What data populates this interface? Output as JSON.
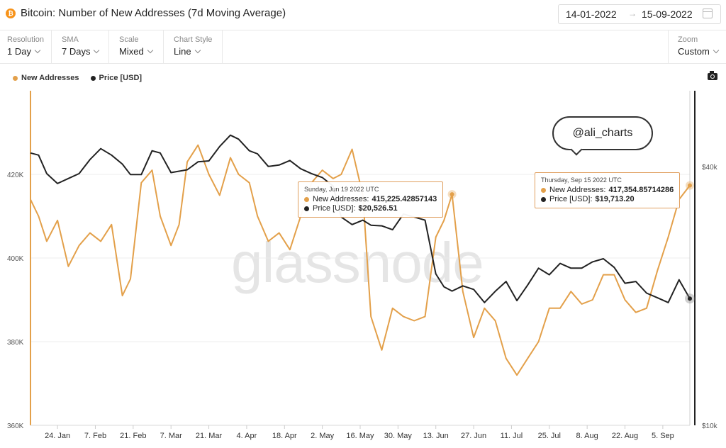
{
  "header": {
    "coin_icon": "bitcoin-icon",
    "coin_glyph": "₿",
    "title": "Bitcoin: Number of New Addresses (7d Moving Average)",
    "date_start": "14-01-2022",
    "date_arrow": "→",
    "date_end": "15-09-2022"
  },
  "toolbar": {
    "resolution_label": "Resolution",
    "resolution_value": "1 Day",
    "sma_label": "SMA",
    "sma_value": "7 Days",
    "scale_label": "Scale",
    "scale_value": "Mixed",
    "chartstyle_label": "Chart Style",
    "chartstyle_value": "Line",
    "zoom_label": "Zoom",
    "zoom_value": "Custom"
  },
  "legend": {
    "addresses": "New Addresses",
    "price": "Price [USD]"
  },
  "watermark": "glassnode",
  "annotation": "@ali_charts",
  "tooltips": {
    "left": {
      "date": "Sunday, Jun 19 2022 UTC",
      "addr_label": "New Addresses:",
      "addr_value": "415,225.42857143",
      "price_label": "Price [USD]:",
      "price_value": "$20,526.51"
    },
    "right": {
      "date": "Thursday, Sep 15 2022 UTC",
      "addr_label": "New Addresses:",
      "addr_value": "417,354.85714286",
      "price_label": "Price [USD]:",
      "price_value": "$19,713.20"
    }
  },
  "colors": {
    "addresses": "#e3a04a",
    "price": "#222222",
    "grid": "#ececec"
  },
  "chart_data": {
    "type": "line",
    "title": "Bitcoin: Number of New Addresses (7d Moving Average)",
    "y_left_ticks": [
      "360K",
      "380K",
      "400K",
      "420K"
    ],
    "y_left_values": [
      360000,
      380000,
      400000,
      420000
    ],
    "y_left_range": [
      360000,
      440000
    ],
    "y_right_ticks": [
      "$10k",
      "$40k"
    ],
    "y_right_scale": "log",
    "y_right_range": [
      10000,
      60000
    ],
    "x_ticks": [
      "24. Jan",
      "7. Feb",
      "21. Feb",
      "7. Mar",
      "21. Mar",
      "4. Apr",
      "18. Apr",
      "2. May",
      "16. May",
      "30. May",
      "13. Jun",
      "27. Jun",
      "11. Jul",
      "25. Jul",
      "8. Aug",
      "22. Aug",
      "5. Sep"
    ],
    "x_range": [
      "2022-01-14",
      "2022-09-15"
    ],
    "series": [
      {
        "name": "New Addresses",
        "x": [
          "2022-01-14",
          "2022-01-17",
          "2022-01-20",
          "2022-01-24",
          "2022-01-28",
          "2022-02-01",
          "2022-02-05",
          "2022-02-09",
          "2022-02-13",
          "2022-02-17",
          "2022-02-20",
          "2022-02-24",
          "2022-02-28",
          "2022-03-03",
          "2022-03-07",
          "2022-03-10",
          "2022-03-13",
          "2022-03-17",
          "2022-03-21",
          "2022-03-25",
          "2022-03-29",
          "2022-04-01",
          "2022-04-05",
          "2022-04-08",
          "2022-04-12",
          "2022-04-16",
          "2022-04-20",
          "2022-04-24",
          "2022-04-28",
          "2022-05-02",
          "2022-05-06",
          "2022-05-09",
          "2022-05-13",
          "2022-05-17",
          "2022-05-20",
          "2022-05-24",
          "2022-05-28",
          "2022-06-01",
          "2022-06-05",
          "2022-06-09",
          "2022-06-13",
          "2022-06-16",
          "2022-06-19",
          "2022-06-23",
          "2022-06-27",
          "2022-07-01",
          "2022-07-05",
          "2022-07-09",
          "2022-07-13",
          "2022-07-17",
          "2022-07-21",
          "2022-07-25",
          "2022-07-29",
          "2022-08-02",
          "2022-08-06",
          "2022-08-10",
          "2022-08-14",
          "2022-08-18",
          "2022-08-22",
          "2022-08-26",
          "2022-08-30",
          "2022-09-03",
          "2022-09-07",
          "2022-09-11",
          "2022-09-15"
        ],
        "y": [
          414000,
          410000,
          404000,
          409000,
          398000,
          403000,
          406000,
          404000,
          408000,
          391000,
          395000,
          418000,
          421000,
          410000,
          403000,
          408000,
          423000,
          427000,
          420000,
          415000,
          424000,
          420000,
          418000,
          410000,
          404000,
          406000,
          402000,
          410000,
          418000,
          421000,
          419000,
          420000,
          426000,
          415000,
          386000,
          378000,
          388000,
          386000,
          385000,
          386000,
          405000,
          409000,
          415225,
          392000,
          381000,
          388000,
          385000,
          376000,
          372000,
          376000,
          380000,
          388000,
          388000,
          392000,
          389000,
          390000,
          396000,
          396000,
          390000,
          387000,
          388000,
          397000,
          405000,
          414000,
          417355
        ]
      },
      {
        "name": "Price [USD]",
        "x": [
          "2022-01-14",
          "2022-01-17",
          "2022-01-20",
          "2022-01-24",
          "2022-01-28",
          "2022-02-01",
          "2022-02-05",
          "2022-02-09",
          "2022-02-13",
          "2022-02-17",
          "2022-02-20",
          "2022-02-24",
          "2022-02-28",
          "2022-03-03",
          "2022-03-07",
          "2022-03-10",
          "2022-03-13",
          "2022-03-17",
          "2022-03-21",
          "2022-03-25",
          "2022-03-29",
          "2022-04-01",
          "2022-04-05",
          "2022-04-08",
          "2022-04-12",
          "2022-04-16",
          "2022-04-20",
          "2022-04-24",
          "2022-04-28",
          "2022-05-02",
          "2022-05-06",
          "2022-05-09",
          "2022-05-13",
          "2022-05-17",
          "2022-05-20",
          "2022-05-24",
          "2022-05-28",
          "2022-06-01",
          "2022-06-05",
          "2022-06-09",
          "2022-06-13",
          "2022-06-16",
          "2022-06-19",
          "2022-06-23",
          "2022-06-27",
          "2022-07-01",
          "2022-07-05",
          "2022-07-09",
          "2022-07-13",
          "2022-07-17",
          "2022-07-21",
          "2022-07-25",
          "2022-07-29",
          "2022-08-02",
          "2022-08-06",
          "2022-08-10",
          "2022-08-14",
          "2022-08-18",
          "2022-08-22",
          "2022-08-26",
          "2022-08-30",
          "2022-09-03",
          "2022-09-07",
          "2022-09-11",
          "2022-09-15"
        ],
        "y": [
          43000,
          42500,
          38500,
          36500,
          37500,
          38500,
          41500,
          44000,
          42500,
          40500,
          38300,
          38300,
          43500,
          43000,
          38700,
          39000,
          39300,
          41000,
          41200,
          44500,
          47300,
          46300,
          43500,
          42800,
          40000,
          40300,
          41300,
          39500,
          38500,
          37700,
          36000,
          30500,
          29300,
          30000,
          29200,
          29100,
          28500,
          31000,
          30500,
          30000,
          22500,
          21000,
          20526,
          21100,
          20700,
          19300,
          20500,
          21600,
          19500,
          21200,
          23200,
          22400,
          23800,
          23200,
          23200,
          24000,
          24400,
          23300,
          21400,
          21600,
          20300,
          19800,
          19300,
          21800,
          19713
        ]
      }
    ]
  }
}
